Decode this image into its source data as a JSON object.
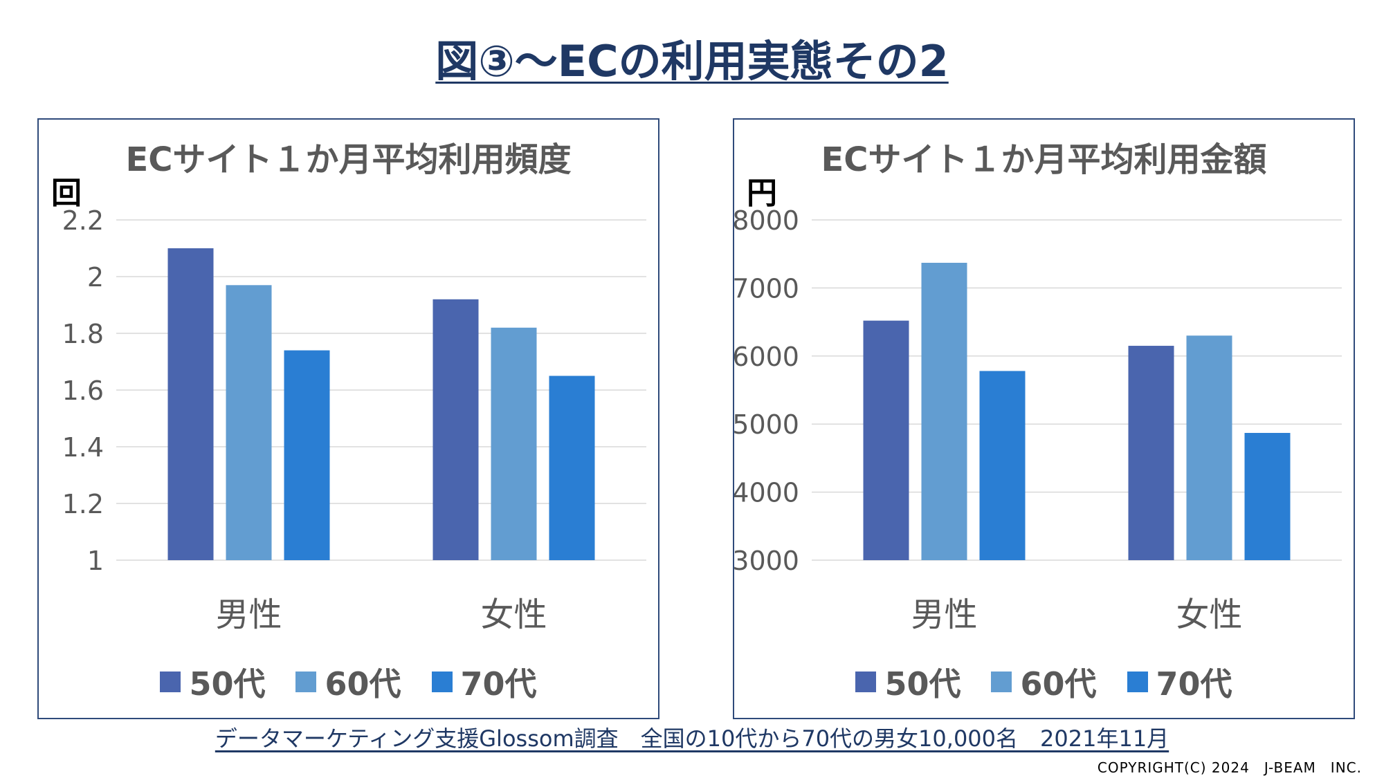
{
  "slide": {
    "title": "図③～ECの利用実態その2",
    "source": "データマーケティング支援Glossom調査　全国の10代から70代の男女10,000名　2021年11月",
    "copyright": "COPYRIGHT(C) 2024　J-BEAM　INC."
  },
  "colors": {
    "title": "#1f3864",
    "series": [
      "#4a65ae",
      "#629dd1",
      "#2a7ed3"
    ],
    "axis_text": "#595959",
    "grid": "#d9d9d9",
    "panel_border": "#2f4a7a"
  },
  "chart_data": [
    {
      "type": "bar",
      "title": "ECサイト１か月平均利用頻度",
      "ylabel": "回",
      "xlabel": "",
      "categories": [
        "男性",
        "女性"
      ],
      "series": [
        {
          "name": "50代",
          "values": [
            2.1,
            1.92
          ]
        },
        {
          "name": "60代",
          "values": [
            1.97,
            1.82
          ]
        },
        {
          "name": "70代",
          "values": [
            1.74,
            1.65
          ]
        }
      ],
      "ylim": [
        1,
        2.2
      ],
      "yticks": [
        "1",
        "1.2",
        "1.4",
        "1.6",
        "1.8",
        "2",
        "2.2"
      ],
      "grid": true,
      "legend": "bottom"
    },
    {
      "type": "bar",
      "title": "ECサイト１か月平均利用金額",
      "ylabel": "円",
      "xlabel": "",
      "categories": [
        "男性",
        "女性"
      ],
      "series": [
        {
          "name": "50代",
          "values": [
            6520,
            6150
          ]
        },
        {
          "name": "60代",
          "values": [
            7370,
            6300
          ]
        },
        {
          "name": "70代",
          "values": [
            5780,
            4870
          ]
        }
      ],
      "ylim": [
        3000,
        8000
      ],
      "yticks": [
        "3000",
        "4000",
        "5000",
        "6000",
        "7000",
        "8000"
      ],
      "grid": true,
      "legend": "bottom"
    }
  ]
}
